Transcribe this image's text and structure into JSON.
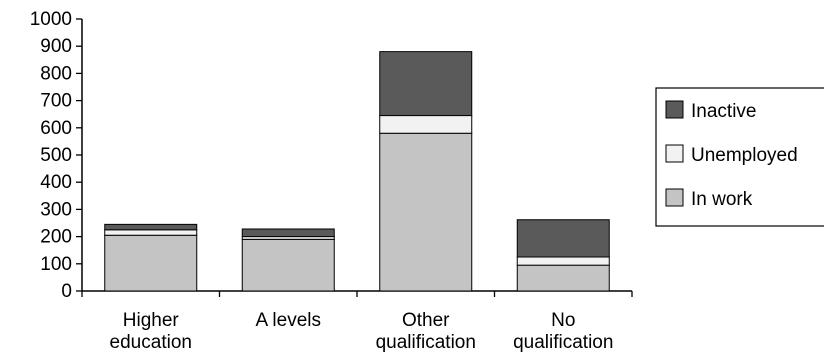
{
  "chart_data": {
    "type": "bar",
    "stacked": true,
    "categories": [
      [
        "Higher",
        "education"
      ],
      [
        "A levels"
      ],
      [
        "Other",
        "qualification"
      ],
      [
        "No",
        "qualification"
      ]
    ],
    "series": [
      {
        "name": "In work",
        "values": [
          205,
          190,
          580,
          95
        ],
        "color": "#c4c4c4"
      },
      {
        "name": "Unemployed",
        "values": [
          20,
          10,
          65,
          30
        ],
        "color": "#f2f2f2"
      },
      {
        "name": "Inactive",
        "values": [
          20,
          28,
          235,
          137
        ],
        "color": "#5a5a5a"
      }
    ],
    "legend_order": [
      "Inactive",
      "Unemployed",
      "In work"
    ],
    "legend_labels": [
      "Inactive",
      "Unemployed",
      "In work"
    ],
    "yticks": [
      "0",
      "100",
      "200",
      "300",
      "400",
      "500",
      "600",
      "700",
      "800",
      "900",
      "1000"
    ],
    "ylim": [
      0,
      1000
    ],
    "grid": false,
    "legend_position": "right"
  }
}
